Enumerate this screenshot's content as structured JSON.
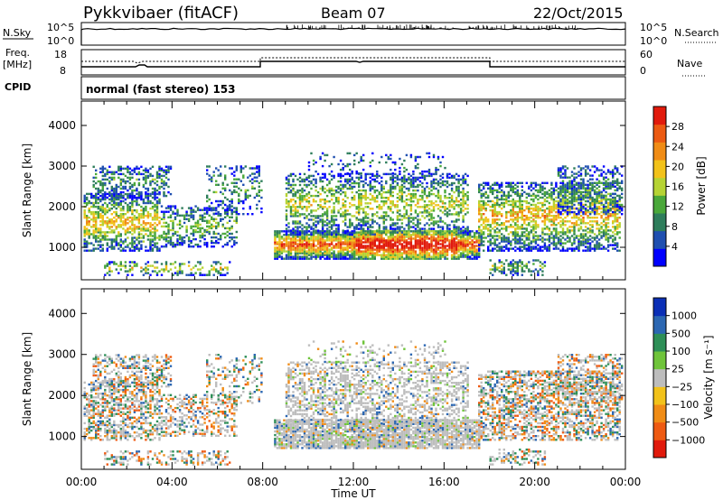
{
  "header": {
    "station": "Pykkvibaer (fitACF)",
    "beam": "Beam 07",
    "date": "22/Oct/2015"
  },
  "top_panels": {
    "nsky": {
      "left_label": "N.Sky",
      "left_ticks": [
        "10^5",
        "10^0"
      ],
      "right_ticks": [
        "10^5",
        "10^0"
      ],
      "right_label": "N.Search",
      "description_levels": {
        "nsky_baseline_log10": 4.7
      }
    },
    "freq": {
      "left_label_line1": "Freq.",
      "left_label_line2": "[MHz]",
      "left_ticks": [
        "18",
        "8"
      ],
      "right_ticks": [
        "60",
        "0"
      ],
      "right_label": "Nave"
    },
    "cpid": {
      "left_label": "CPID",
      "text": "normal (fast stereo) 153"
    }
  },
  "colors": {
    "power_scale": [
      "#0000ff",
      "#1f4fb0",
      "#2e7d5b",
      "#4aa83a",
      "#b6d334",
      "#f2c21a",
      "#f08c16",
      "#ec5a12",
      "#e11a0c"
    ],
    "velocity_scale": [
      "#0b2fb6",
      "#2c67b2",
      "#2e8f57",
      "#6fc43a",
      "#bdbdbd",
      "#f2c21a",
      "#f08c16",
      "#ee5a12",
      "#e11a0c"
    ]
  },
  "chart_data": [
    {
      "type": "heatmap",
      "name": "power",
      "ylabel": "Slant Range [km]",
      "yticks": [
        "1000",
        "2000",
        "3000",
        "4000"
      ],
      "ylim": [
        200,
        4600
      ],
      "xlim_hours": [
        0,
        24
      ],
      "colorbar": {
        "label": "Power [dB]",
        "ticks": [
          "4",
          "8",
          "12",
          "16",
          "20",
          "24",
          "28"
        ],
        "range": [
          0,
          30
        ]
      }
    },
    {
      "type": "heatmap",
      "name": "velocity",
      "ylabel": "Slant Range [km]",
      "yticks": [
        "1000",
        "2000",
        "3000",
        "4000"
      ],
      "ylim": [
        200,
        4600
      ],
      "xlim_hours": [
        0,
        24
      ],
      "colorbar": {
        "label": "Velocity [m s⁻¹]",
        "ticks": [
          "1000",
          "500",
          "100",
          "25",
          "−25",
          "−100",
          "−500",
          "−1000"
        ]
      }
    }
  ],
  "x_axis": {
    "label": "Time UT",
    "ticks": [
      "00:00",
      "04:00",
      "08:00",
      "12:00",
      "16:00",
      "20:00",
      "00:00"
    ]
  }
}
